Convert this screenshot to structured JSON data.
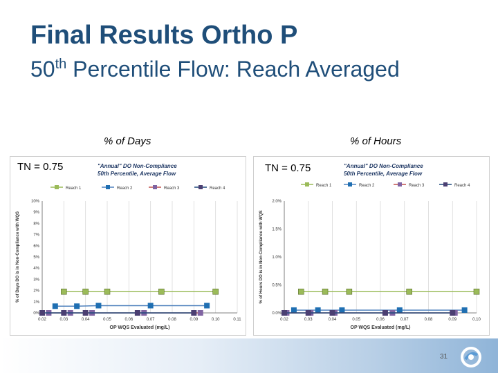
{
  "slide": {
    "title_line1": "Final Results Ortho P",
    "title_line2_num": "50",
    "title_line2_sup": "th",
    "title_line2_rest": " Percentile Flow: Reach Averaged",
    "left_heading": "% of Days",
    "right_heading": "% of Hours",
    "left_tn": "TN = 0.75",
    "right_tn": "TN = 0.75",
    "page_number": "31"
  },
  "chart_data": [
    {
      "type": "line",
      "title": "\"Annual\" DO Non-Compliance",
      "subtitle": "50th Percentile, Average Flow",
      "xlabel": "OP WQS Evaluated (mg/L)",
      "ylabel": "% of Days DO is in Non-Compliance with WQS",
      "xlim": [
        0.02,
        0.11
      ],
      "ylim": [
        0,
        10
      ],
      "x_ticks": [
        "0.02",
        "0.03",
        "0.04",
        "0.05",
        "0.06",
        "0.07",
        "0.08",
        "0.09",
        "0.10",
        "0.11"
      ],
      "y_ticks": [
        "0%",
        "1%",
        "2%",
        "3%",
        "4%",
        "5%",
        "6%",
        "7%",
        "8%",
        "9%",
        "10%"
      ],
      "grid": "vertical",
      "legend": "top",
      "series": [
        {
          "name": "Reach 1",
          "color": "#9bbb59",
          "marker": "#9bbb59",
          "x": [
            0.03,
            0.04,
            0.05,
            0.075,
            0.1
          ],
          "values": [
            1.9,
            1.9,
            1.9,
            1.9,
            1.9
          ]
        },
        {
          "name": "Reach 2",
          "color": "#4f81bd",
          "marker": "#1f6fb2",
          "x": [
            0.026,
            0.036,
            0.046,
            0.07,
            0.096
          ],
          "values": [
            0.6,
            0.6,
            0.65,
            0.65,
            0.65
          ]
        },
        {
          "name": "Reach 3",
          "color": "#c0504d",
          "marker": "#8064a2",
          "x": [
            0.023,
            0.033,
            0.043,
            0.067,
            0.093
          ],
          "values": [
            0,
            0,
            0,
            0,
            0
          ]
        },
        {
          "name": "Reach 4",
          "color": "#1f497d",
          "marker": "#4b3f72",
          "x": [
            0.02,
            0.03,
            0.04,
            0.064,
            0.09
          ],
          "values": [
            0,
            0,
            0,
            0,
            0
          ]
        }
      ]
    },
    {
      "type": "line",
      "title": "\"Annual\" DO Non-Compliance",
      "subtitle": "50th Percentile, Average Flow",
      "xlabel": "OP WQS Evaluated (mg/L)",
      "ylabel": "% of Hours DO is in Non-Compliance with WQS",
      "xlim": [
        0.02,
        0.1
      ],
      "ylim": [
        0,
        2
      ],
      "x_ticks": [
        "0.02",
        "0.03",
        "0.04",
        "0.05",
        "0.06",
        "0.07",
        "0.08",
        "0.09",
        "0.10"
      ],
      "y_ticks": [
        "0.0%",
        "0.5%",
        "1.0%",
        "1.5%",
        "2.0%"
      ],
      "grid": "vertical",
      "legend": "top",
      "series": [
        {
          "name": "Reach 1",
          "color": "#9bbb59",
          "marker": "#9bbb59",
          "x": [
            0.027,
            0.037,
            0.047,
            0.072,
            0.1
          ],
          "values": [
            0.38,
            0.38,
            0.38,
            0.38,
            0.38
          ]
        },
        {
          "name": "Reach 2",
          "color": "#4f81bd",
          "marker": "#1f6fb2",
          "x": [
            0.024,
            0.034,
            0.044,
            0.068,
            0.095
          ],
          "values": [
            0.05,
            0.05,
            0.05,
            0.05,
            0.05
          ]
        },
        {
          "name": "Reach 3",
          "color": "#c0504d",
          "marker": "#8064a2",
          "x": [
            0.021,
            0.031,
            0.041,
            0.065,
            0.091
          ],
          "values": [
            0,
            0,
            0,
            0,
            0
          ]
        },
        {
          "name": "Reach 4",
          "color": "#1f497d",
          "marker": "#4b3f72",
          "x": [
            0.02,
            0.03,
            0.04,
            0.062,
            0.09
          ],
          "values": [
            0,
            0,
            0,
            0,
            0
          ]
        }
      ]
    }
  ]
}
